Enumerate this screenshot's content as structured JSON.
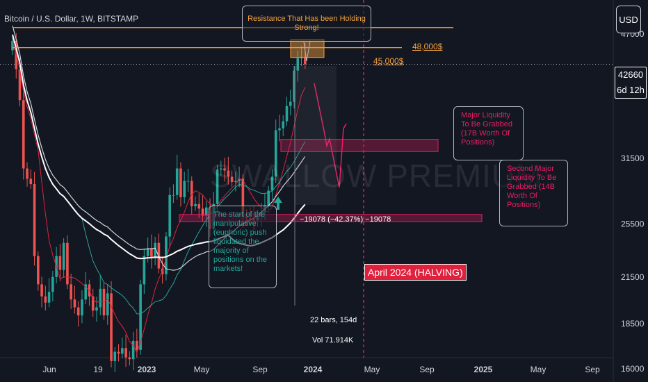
{
  "header": {
    "title": "Bitcoin / U.S. Dollar, 1W, BITSTAMP"
  },
  "currency_button": "USD",
  "current_price": {
    "value": "42660",
    "countdown": "6d 12h"
  },
  "watermark": "SWALLOW PREMIUM",
  "annotations": {
    "resistance": "Resistance That Has been Holding Strong!",
    "level_48k": "48,000$",
    "level_45k": "45,000$",
    "liquidity_1": "Major Liquidity To Be Grabbed (17B Worth Of Positions)",
    "liquidity_2": "Second Major Liquidity To Be Grabbed (14B Worth Of Positions)",
    "push_note": "The start of the manipulative (euphoric) push liquidated the majority of positions on the markets!",
    "measure": "−19078 (−42.37%) −19078",
    "bars": "22 bars, 154d",
    "vol": "Vol 71.914K",
    "halving": "April 2024 (HALVING)"
  },
  "chart_data": {
    "type": "candlestick",
    "symbol": "Bitcoin / U.S. Dollar",
    "interval": "1W",
    "exchange": "BITSTAMP",
    "y_ticks": [
      47000,
      31500,
      25500,
      21500,
      18500,
      16000
    ],
    "x_ticks": [
      "Jun",
      "19",
      "2023",
      "May",
      "Sep",
      "2024",
      "May",
      "Sep",
      "2025",
      "May",
      "Sep"
    ],
    "scale": "log",
    "ylim": [
      14500,
      60000
    ],
    "last_price": 42660,
    "horizontal_levels": [
      {
        "label": "48,000$",
        "value": 48000
      },
      {
        "label": "45,000$",
        "value": 45000
      }
    ],
    "liquidity_zones": [
      {
        "low": 32200,
        "high": 33500
      },
      {
        "low": 25700,
        "high": 26300
      }
    ],
    "colors": {
      "up": "#26a69a",
      "down": "#ef5350",
      "background": "#131722",
      "levels": "#f7a13b",
      "zone": "#e91e63"
    },
    "candles_close_path": [
      46000,
      42000,
      38000,
      30500,
      29500,
      29000,
      23000,
      21000,
      20200,
      19800,
      20500,
      21500,
      23000,
      22000,
      24000,
      21000,
      20000,
      19500,
      19000,
      20000,
      21000,
      20200,
      19300,
      19500,
      20700,
      19000,
      20400,
      16400,
      16900,
      16800,
      17100,
      16600,
      16500,
      17500,
      17000,
      21000,
      23000,
      23600,
      22900,
      24000,
      22100,
      21700,
      24500,
      28000,
      28000,
      30500,
      27800,
      29300,
      29300,
      27000,
      27200,
      26800,
      26200,
      26900,
      25100,
      27200,
      30400,
      30500,
      30300,
      29700,
      29200,
      29300,
      29500,
      26100,
      26000,
      25900,
      25800,
      26200,
      26500,
      27100,
      28400,
      29700,
      34500,
      34700,
      35500,
      37300,
      37800,
      41800,
      43500,
      43700,
      42660
    ]
  }
}
